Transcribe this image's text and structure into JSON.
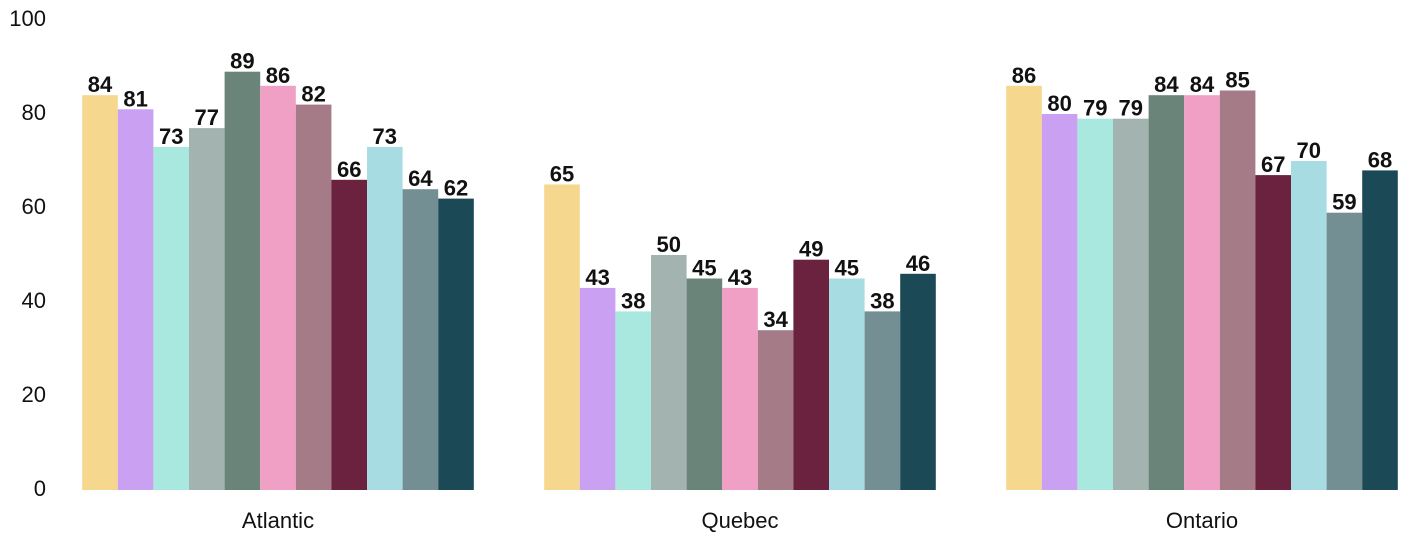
{
  "chart_data": {
    "type": "bar",
    "categories": [
      "Atlantic",
      "Quebec",
      "Ontario"
    ],
    "series": [
      {
        "color": "#f5d78e",
        "values": [
          84,
          65,
          86
        ]
      },
      {
        "color": "#c9a0f2",
        "values": [
          81,
          43,
          80
        ]
      },
      {
        "color": "#a8e8de",
        "values": [
          73,
          38,
          79
        ]
      },
      {
        "color": "#a3b3b0",
        "values": [
          77,
          50,
          79
        ]
      },
      {
        "color": "#6a8479",
        "values": [
          89,
          45,
          84
        ]
      },
      {
        "color": "#efa0c4",
        "values": [
          86,
          43,
          84
        ]
      },
      {
        "color": "#a57b87",
        "values": [
          82,
          34,
          85
        ]
      },
      {
        "color": "#6a223f",
        "values": [
          66,
          49,
          67
        ]
      },
      {
        "color": "#a8dce3",
        "values": [
          73,
          45,
          70
        ]
      },
      {
        "color": "#738f94",
        "values": [
          64,
          38,
          59
        ]
      },
      {
        "color": "#1b4955",
        "values": [
          62,
          46,
          68
        ]
      }
    ],
    "ylim": [
      0,
      100
    ],
    "yticks": [
      0,
      20,
      40,
      60,
      80,
      100
    ],
    "grid": false
  }
}
